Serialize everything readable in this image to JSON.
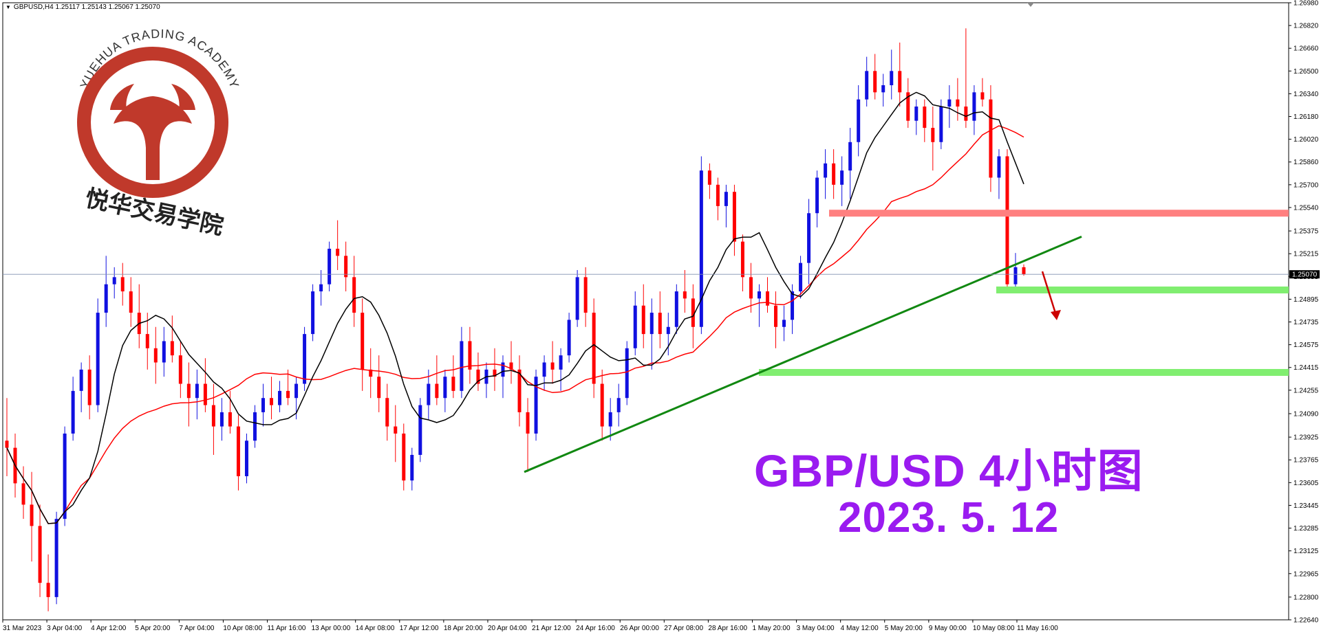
{
  "window": {
    "title": "GBPUSD,H4 1.25117 1.25143 1.25067 1.25070"
  },
  "watermark": {
    "brand_en": "YUEHUA TRADING ACADEMY",
    "brand_cn": "悦华交易学院",
    "color": "#c0392b"
  },
  "annotation": {
    "title": "GBP/USD 4小时图",
    "date": "2023. 5. 12",
    "color": "#9a1bf0"
  },
  "chart_data": {
    "type": "candlestick",
    "symbol": "GBPUSD",
    "timeframe": "H4",
    "ylim": [
      1.2264,
      1.2698
    ],
    "y_ticks": [
      1.2698,
      1.2682,
      1.2666,
      1.265,
      1.2634,
      1.2618,
      1.2602,
      1.2586,
      1.257,
      1.2554,
      1.25375,
      1.25215,
      1.25055,
      1.24895,
      1.24735,
      1.24575,
      1.24415,
      1.24255,
      1.2409,
      1.23925,
      1.23765,
      1.23605,
      1.23445,
      1.23285,
      1.23125,
      1.22965,
      1.228,
      1.2264
    ],
    "x_ticks": [
      "31 Mar 2023",
      "3 Apr 04:00",
      "4 Apr 12:00",
      "5 Apr 20:00",
      "7 Apr 04:00",
      "10 Apr 08:00",
      "11 Apr 16:00",
      "13 Apr 00:00",
      "14 Apr 08:00",
      "17 Apr 12:00",
      "18 Apr 20:00",
      "20 Apr 04:00",
      "21 Apr 12:00",
      "24 Apr 16:00",
      "26 Apr 00:00",
      "27 Apr 08:00",
      "28 Apr 16:00",
      "1 May 20:00",
      "3 May 04:00",
      "4 May 12:00",
      "5 May 20:00",
      "9 May 00:00",
      "10 May 08:00",
      "11 May 16:00"
    ],
    "current_price": "1.25070",
    "bull_color": "#1010e0",
    "bear_color": "#ff0000",
    "ma_fast_color": "#000000",
    "ma_slow_color": "#ff0000",
    "ohlc": [
      [
        1.239,
        1.242,
        1.2365,
        1.2385
      ],
      [
        1.2385,
        1.2395,
        1.235,
        1.236
      ],
      [
        1.236,
        1.2372,
        1.2335,
        1.2345
      ],
      [
        1.2345,
        1.2368,
        1.2305,
        1.233
      ],
      [
        1.233,
        1.2345,
        1.228,
        1.229
      ],
      [
        1.229,
        1.231,
        1.227,
        1.228
      ],
      [
        1.228,
        1.234,
        1.2275,
        1.2335
      ],
      [
        1.2335,
        1.24,
        1.233,
        1.2395
      ],
      [
        1.2395,
        1.2435,
        1.239,
        1.2425
      ],
      [
        1.2425,
        1.2445,
        1.241,
        1.244
      ],
      [
        1.244,
        1.245,
        1.2405,
        1.2415
      ],
      [
        1.2415,
        1.249,
        1.241,
        1.248
      ],
      [
        1.248,
        1.252,
        1.247,
        1.25
      ],
      [
        1.25,
        1.2512,
        1.249,
        1.2505
      ],
      [
        1.2505,
        1.2515,
        1.2485,
        1.2495
      ],
      [
        1.2495,
        1.2505,
        1.247,
        1.248
      ],
      [
        1.248,
        1.25,
        1.2455,
        1.2465
      ],
      [
        1.2465,
        1.248,
        1.244,
        1.2455
      ],
      [
        1.2455,
        1.247,
        1.243,
        1.2445
      ],
      [
        1.2445,
        1.247,
        1.2435,
        1.246
      ],
      [
        1.246,
        1.2478,
        1.2445,
        1.245
      ],
      [
        1.245,
        1.246,
        1.242,
        1.243
      ],
      [
        1.243,
        1.2445,
        1.24,
        1.242
      ],
      [
        1.242,
        1.244,
        1.2405,
        1.243
      ],
      [
        1.243,
        1.2448,
        1.241,
        1.2415
      ],
      [
        1.2415,
        1.243,
        1.238,
        1.24
      ],
      [
        1.24,
        1.242,
        1.239,
        1.241
      ],
      [
        1.241,
        1.2425,
        1.2395,
        1.24
      ],
      [
        1.24,
        1.2408,
        1.2355,
        1.2365
      ],
      [
        1.2365,
        1.2395,
        1.236,
        1.239
      ],
      [
        1.239,
        1.2415,
        1.2385,
        1.241
      ],
      [
        1.241,
        1.243,
        1.24,
        1.242
      ],
      [
        1.242,
        1.2435,
        1.2405,
        1.2415
      ],
      [
        1.2415,
        1.2432,
        1.241,
        1.2425
      ],
      [
        1.2425,
        1.244,
        1.2415,
        1.242
      ],
      [
        1.242,
        1.2435,
        1.2405,
        1.243
      ],
      [
        1.243,
        1.247,
        1.2425,
        1.2465
      ],
      [
        1.2465,
        1.25,
        1.246,
        1.2495
      ],
      [
        1.2495,
        1.251,
        1.2485,
        1.25
      ],
      [
        1.25,
        1.253,
        1.2495,
        1.2525
      ],
      [
        1.2525,
        1.2545,
        1.251,
        1.252
      ],
      [
        1.252,
        1.253,
        1.2495,
        1.2505
      ],
      [
        1.2505,
        1.252,
        1.247,
        1.248
      ],
      [
        1.248,
        1.249,
        1.2425,
        1.244
      ],
      [
        1.244,
        1.2455,
        1.242,
        1.2435
      ],
      [
        1.2435,
        1.245,
        1.241,
        1.242
      ],
      [
        1.242,
        1.243,
        1.239,
        1.24
      ],
      [
        1.24,
        1.2415,
        1.2375,
        1.2395
      ],
      [
        1.2395,
        1.2402,
        1.2355,
        1.2362
      ],
      [
        1.2362,
        1.2385,
        1.2355,
        1.238
      ],
      [
        1.238,
        1.242,
        1.2375,
        1.2415
      ],
      [
        1.2415,
        1.244,
        1.2405,
        1.243
      ],
      [
        1.243,
        1.245,
        1.2415,
        1.242
      ],
      [
        1.242,
        1.244,
        1.241,
        1.2435
      ],
      [
        1.2435,
        1.245,
        1.242,
        1.2425
      ],
      [
        1.2425,
        1.247,
        1.242,
        1.246
      ],
      [
        1.246,
        1.247,
        1.243,
        1.244
      ],
      [
        1.244,
        1.2452,
        1.2425,
        1.243
      ],
      [
        1.243,
        1.2445,
        1.242,
        1.244
      ],
      [
        1.244,
        1.2455,
        1.2425,
        1.2435
      ],
      [
        1.2435,
        1.245,
        1.242,
        1.2445
      ],
      [
        1.2445,
        1.246,
        1.243,
        1.244
      ],
      [
        1.244,
        1.245,
        1.24,
        1.241
      ],
      [
        1.241,
        1.242,
        1.2368,
        1.2395
      ],
      [
        1.2395,
        1.244,
        1.239,
        1.2435
      ],
      [
        1.2435,
        1.245,
        1.2425,
        1.2445
      ],
      [
        1.2445,
        1.246,
        1.243,
        1.244
      ],
      [
        1.244,
        1.2455,
        1.2425,
        1.245
      ],
      [
        1.245,
        1.248,
        1.2445,
        1.2475
      ],
      [
        1.2475,
        1.251,
        1.247,
        1.2505
      ],
      [
        1.2505,
        1.2512,
        1.247,
        1.248
      ],
      [
        1.248,
        1.249,
        1.242,
        1.243
      ],
      [
        1.243,
        1.244,
        1.239,
        1.24
      ],
      [
        1.24,
        1.242,
        1.239,
        1.241
      ],
      [
        1.241,
        1.243,
        1.24,
        1.242
      ],
      [
        1.242,
        1.246,
        1.2415,
        1.2455
      ],
      [
        1.2455,
        1.2495,
        1.245,
        1.2485
      ],
      [
        1.2485,
        1.25,
        1.2455,
        1.2465
      ],
      [
        1.2465,
        1.249,
        1.244,
        1.248
      ],
      [
        1.248,
        1.2495,
        1.2455,
        1.2465
      ],
      [
        1.2465,
        1.248,
        1.245,
        1.247
      ],
      [
        1.247,
        1.25,
        1.2465,
        1.2495
      ],
      [
        1.2495,
        1.251,
        1.248,
        1.249
      ],
      [
        1.249,
        1.25,
        1.2455,
        1.247
      ],
      [
        1.247,
        1.259,
        1.2465,
        1.258
      ],
      [
        1.258,
        1.2585,
        1.256,
        1.257
      ],
      [
        1.257,
        1.2575,
        1.2545,
        1.2555
      ],
      [
        1.2555,
        1.257,
        1.254,
        1.2565
      ],
      [
        1.2565,
        1.257,
        1.252,
        1.253
      ],
      [
        1.253,
        1.2535,
        1.2495,
        1.2505
      ],
      [
        1.2505,
        1.2515,
        1.248,
        1.249
      ],
      [
        1.249,
        1.25,
        1.247,
        1.2495
      ],
      [
        1.2495,
        1.2505,
        1.248,
        1.2485
      ],
      [
        1.2485,
        1.2495,
        1.2455,
        1.247
      ],
      [
        1.247,
        1.2485,
        1.246,
        1.2475
      ],
      [
        1.2475,
        1.25,
        1.2465,
        1.2495
      ],
      [
        1.2495,
        1.252,
        1.249,
        1.2515
      ],
      [
        1.2515,
        1.256,
        1.25,
        1.255
      ],
      [
        1.255,
        1.258,
        1.254,
        1.2575
      ],
      [
        1.2575,
        1.2595,
        1.256,
        1.2585
      ],
      [
        1.2585,
        1.2595,
        1.256,
        1.257
      ],
      [
        1.257,
        1.259,
        1.2555,
        1.258
      ],
      [
        1.258,
        1.261,
        1.256,
        1.26
      ],
      [
        1.26,
        1.264,
        1.259,
        1.263
      ],
      [
        1.263,
        1.266,
        1.2625,
        1.265
      ],
      [
        1.265,
        1.2662,
        1.263,
        1.2635
      ],
      [
        1.2635,
        1.2648,
        1.2625,
        1.264
      ],
      [
        1.264,
        1.2665,
        1.263,
        1.265
      ],
      [
        1.265,
        1.267,
        1.2625,
        1.2635
      ],
      [
        1.2635,
        1.2645,
        1.261,
        1.2615
      ],
      [
        1.2615,
        1.263,
        1.2605,
        1.2625
      ],
      [
        1.2625,
        1.263,
        1.26,
        1.261
      ],
      [
        1.261,
        1.2625,
        1.258,
        1.26
      ],
      [
        1.26,
        1.263,
        1.2595,
        1.2625
      ],
      [
        1.2625,
        1.264,
        1.261,
        1.263
      ],
      [
        1.263,
        1.2645,
        1.2615,
        1.2625
      ],
      [
        1.2625,
        1.268,
        1.261,
        1.2615
      ],
      [
        1.2615,
        1.264,
        1.2605,
        1.2635
      ],
      [
        1.2635,
        1.2645,
        1.2625,
        1.263
      ],
      [
        1.263,
        1.264,
        1.2565,
        1.2575
      ],
      [
        1.2575,
        1.2595,
        1.256,
        1.259
      ],
      [
        1.259,
        1.2595,
        1.2495,
        1.25
      ],
      [
        1.25,
        1.2522,
        1.2495,
        1.2512
      ],
      [
        1.2512,
        1.2514,
        1.2506,
        1.2507
      ]
    ],
    "support_resistance": [
      {
        "price": 1.255,
        "color": "#ff8080"
      },
      {
        "price": 1.2496,
        "color": "#80ee70"
      },
      {
        "price": 1.2438,
        "color": "#80ee70"
      }
    ],
    "trendline_color": "#118811",
    "arrow_color": "#cc0000",
    "grid": false,
    "legend": "none"
  }
}
